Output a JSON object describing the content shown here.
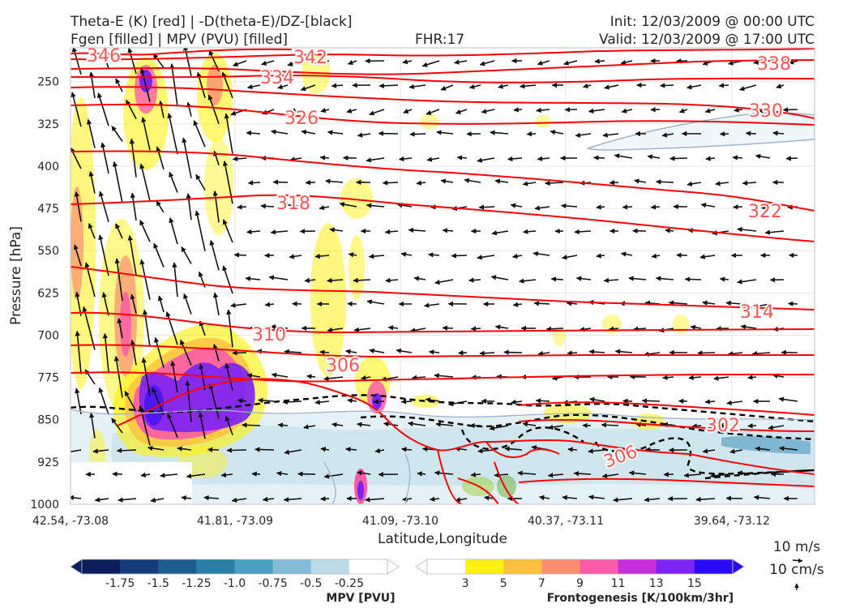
{
  "header": {
    "title_left_1": "Theta-E (K) [red] | -D(theta-E)/DZ-[black]",
    "title_left_2": "Fgen [filled] | MPV (PVU) [filled]",
    "fhr": "FHR:17",
    "init": "Init: 12/03/2009 @ 00:00 UTC",
    "valid": "Valid: 12/03/2009 @ 17:00 UTC"
  },
  "chart_data": {
    "type": "cross-section",
    "xlabel": "Latitude,Longitude",
    "ylabel": "Pressure [hPa]",
    "x_ticks": [
      "42.54, -73.08",
      "41.81, -73.09",
      "41.09, -73.10",
      "40.37, -73.11",
      "39.64, -73.12"
    ],
    "y_ticks": [
      250,
      325,
      400,
      475,
      550,
      625,
      700,
      775,
      850,
      925,
      1000
    ],
    "ylim": [
      1000,
      190
    ],
    "y_scale": "linear, inverted",
    "grid": true,
    "theta_e_contours": [
      {
        "label": "346",
        "level": 346
      },
      {
        "label": "342",
        "level": 342
      },
      {
        "label": "338",
        "level": 338
      },
      {
        "label": "334",
        "level": 334
      },
      {
        "label": "330",
        "level": 330
      },
      {
        "label": "326",
        "level": 326
      },
      {
        "label": "322",
        "level": 322
      },
      {
        "label": "318",
        "level": 318
      },
      {
        "label": "314",
        "level": 314
      },
      {
        "label": "310",
        "level": 310
      },
      {
        "label": "306",
        "level": 306
      },
      {
        "label": "302",
        "level": 302
      },
      {
        "label": "306",
        "level": 306
      }
    ],
    "wind_reference": {
      "h_label": "10 m/s",
      "v_label": "10 cm/s"
    },
    "colorbars": [
      {
        "name": "MPV [PVU]",
        "tick_labels": [
          "-1.75",
          "-1.5",
          "-1.25",
          "-1.0",
          "-0.75",
          "-0.5",
          "-0.25"
        ],
        "colors": [
          "#0c1d5e",
          "#133c7a",
          "#1c5d8e",
          "#2a7fa6",
          "#4b9fc2",
          "#84bcd5",
          "#bcdbe7",
          "#ffffff"
        ]
      },
      {
        "name": "Frontogenesis [K/100km/3hr]",
        "tick_labels": [
          "3",
          "5",
          "7",
          "9",
          "11",
          "13",
          "15"
        ],
        "colors": [
          "#ffffff",
          "#fcf115",
          "#fcc03f",
          "#fc8f70",
          "#fc5ca7",
          "#c62fd9",
          "#7b24f4",
          "#2a0bf5"
        ]
      }
    ],
    "colors": {
      "theta_e": "#ff0000",
      "stability": "#000000",
      "label": "#ff5555"
    }
  }
}
